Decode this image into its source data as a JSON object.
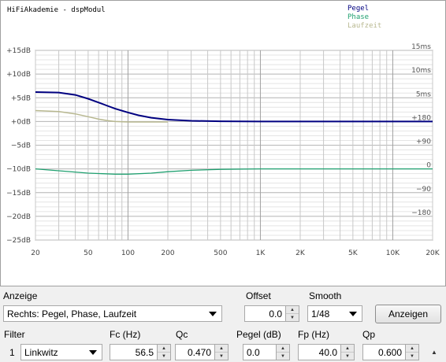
{
  "window": {
    "title": "HiFiAkademie - dspModul"
  },
  "legend": {
    "pegel": {
      "label": "Pegel",
      "color": "#000080"
    },
    "phase": {
      "label": "Phase",
      "color": "#20a070"
    },
    "laufzeit": {
      "label": "Laufzeit",
      "color": "#b8b890"
    }
  },
  "chart_data": {
    "type": "line",
    "xscale": "log",
    "xlim": [
      20,
      20000
    ],
    "ylim_db": [
      -25,
      15
    ],
    "x_ticks": [
      {
        "v": 20,
        "label": "20"
      },
      {
        "v": 50,
        "label": "50"
      },
      {
        "v": 100,
        "label": "100"
      },
      {
        "v": 200,
        "label": "200"
      },
      {
        "v": 500,
        "label": "500"
      },
      {
        "v": 1000,
        "label": "1K"
      },
      {
        "v": 2000,
        "label": "2K"
      },
      {
        "v": 5000,
        "label": "5K"
      },
      {
        "v": 10000,
        "label": "10K"
      },
      {
        "v": 20000,
        "label": "20K"
      }
    ],
    "y_left_ticks": [
      {
        "v": 15,
        "label": "+15dB"
      },
      {
        "v": 10,
        "label": "+10dB"
      },
      {
        "v": 5,
        "label": "+5dB"
      },
      {
        "v": 0,
        "label": "+0dB"
      },
      {
        "v": -5,
        "label": "−5dB"
      },
      {
        "v": -10,
        "label": "−10dB"
      },
      {
        "v": -15,
        "label": "−15dB"
      },
      {
        "v": -20,
        "label": "−20dB"
      },
      {
        "v": -25,
        "label": "−25dB"
      }
    ],
    "y_right_ticks": [
      {
        "v": 15,
        "label": "15ms"
      },
      {
        "v": 10,
        "label": "10ms"
      },
      {
        "v": 5,
        "label": "5ms"
      },
      {
        "v": 0,
        "label": "+180"
      },
      {
        "v": -5,
        "label": "+90"
      },
      {
        "v": -10,
        "label": "0"
      },
      {
        "v": -15,
        "label": "−90"
      },
      {
        "v": -20,
        "label": "−180"
      }
    ],
    "series": [
      {
        "name": "Pegel",
        "color": "#000080",
        "points": [
          [
            20,
            6.2
          ],
          [
            30,
            6.1
          ],
          [
            40,
            5.6
          ],
          [
            50,
            4.8
          ],
          [
            60,
            4.0
          ],
          [
            70,
            3.3
          ],
          [
            80,
            2.7
          ],
          [
            100,
            1.9
          ],
          [
            120,
            1.3
          ],
          [
            150,
            0.8
          ],
          [
            200,
            0.4
          ],
          [
            300,
            0.15
          ],
          [
            500,
            0.05
          ],
          [
            1000,
            0
          ],
          [
            20000,
            0
          ]
        ]
      },
      {
        "name": "Phase",
        "color": "#20a070",
        "points": [
          [
            20,
            -10.0
          ],
          [
            30,
            -10.4
          ],
          [
            50,
            -10.9
          ],
          [
            80,
            -11.1
          ],
          [
            100,
            -11.1
          ],
          [
            150,
            -10.9
          ],
          [
            200,
            -10.6
          ],
          [
            300,
            -10.3
          ],
          [
            500,
            -10.1
          ],
          [
            1000,
            -10.0
          ],
          [
            20000,
            -10.0
          ]
        ]
      },
      {
        "name": "Laufzeit",
        "color": "#b8b890",
        "points": [
          [
            20,
            2.3
          ],
          [
            30,
            2.1
          ],
          [
            40,
            1.6
          ],
          [
            50,
            1.0
          ],
          [
            60,
            0.5
          ],
          [
            70,
            0.2
          ],
          [
            80,
            0.0
          ],
          [
            100,
            -0.1
          ],
          [
            150,
            -0.1
          ],
          [
            200,
            -0.1
          ]
        ]
      }
    ]
  },
  "controls": {
    "anzeige_label": "Anzeige",
    "anzeige_value": "Rechts: Pegel, Phase, Laufzeit",
    "offset_label": "Offset",
    "offset_value": "0.0",
    "smooth_label": "Smooth",
    "smooth_value": "1/48",
    "anzeigen_button": "Anzeigen",
    "filter_label": "Filter",
    "fc_label": "Fc (Hz)",
    "qc_label": "Qc",
    "pegel_label": "Pegel (dB)",
    "fp_label": "Fp (Hz)",
    "qp_label": "Qp",
    "filter_row": {
      "index": "1",
      "type": "Linkwitz",
      "fc": "56.5",
      "qc": "0.470",
      "pegel": "0.0",
      "fp": "40.0",
      "qp": "0.600"
    }
  }
}
